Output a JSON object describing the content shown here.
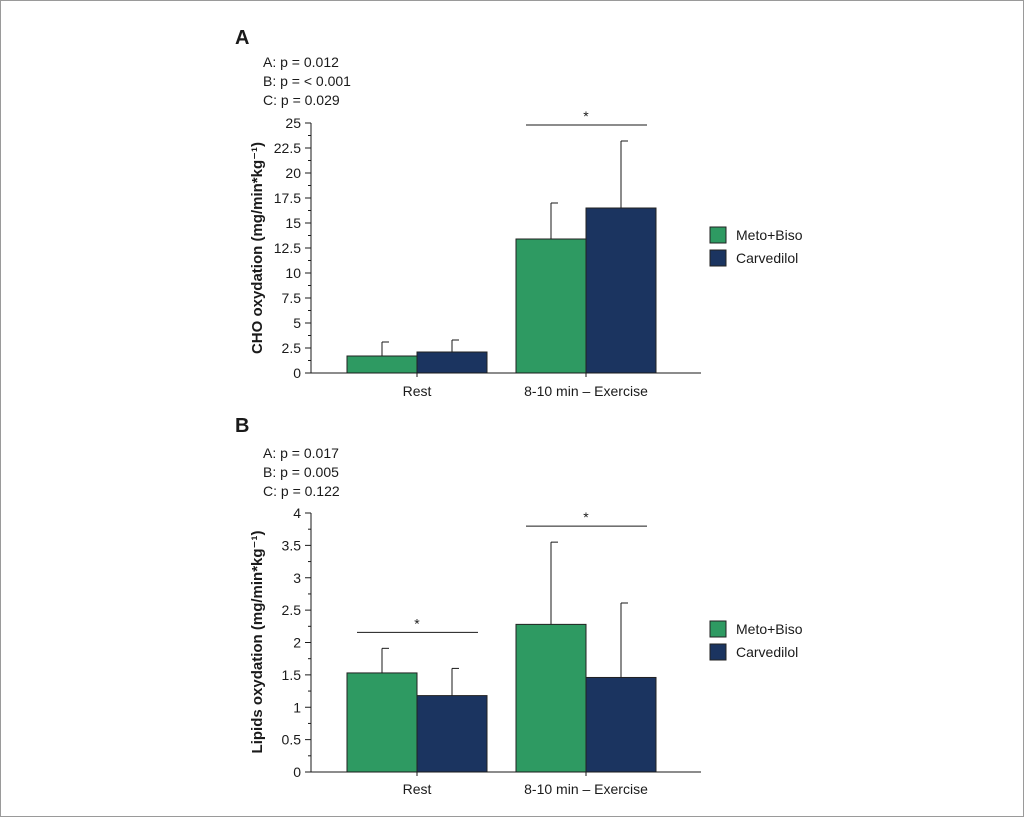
{
  "colors": {
    "meto_biso": "#2e9a62",
    "carvedilol": "#1b3460",
    "axis": "#1a1a1a",
    "bar_edge": "#222222"
  },
  "panels": [
    {
      "letter": "A",
      "stats": [
        "A: p = 0.012",
        "B: p = < 0.001",
        "C: p = 0.029"
      ],
      "significance": [
        {
          "category": 1,
          "label": "*"
        }
      ]
    },
    {
      "letter": "B",
      "stats": [
        "A: p = 0.017",
        "B: p = 0.005",
        "C: p = 0.122"
      ],
      "significance": [
        {
          "category": 0,
          "label": "*"
        },
        {
          "category": 1,
          "label": "*"
        }
      ]
    }
  ],
  "chart_data": [
    {
      "type": "bar",
      "title": "",
      "xlabel": "",
      "ylabel": "CHO oxydation (mg/min*kg⁻¹)",
      "categories": [
        "Rest",
        "8-10 min – Exercise"
      ],
      "series": [
        {
          "name": "Meto+Biso",
          "values": [
            1.7,
            13.4
          ],
          "errors": [
            1.4,
            3.6
          ]
        },
        {
          "name": "Carvedilol",
          "values": [
            2.1,
            16.5
          ],
          "errors": [
            1.2,
            6.7
          ]
        }
      ],
      "ylim": [
        0,
        25
      ],
      "yticks": [
        "0",
        "2.5",
        "5",
        "7.5",
        "10",
        "12.5",
        "15",
        "17.5",
        "20",
        "22.5",
        "25"
      ],
      "legend": "right",
      "grid": false
    },
    {
      "type": "bar",
      "title": "",
      "xlabel": "",
      "ylabel": "Lipids oxydation (mg/min*kg⁻¹)",
      "categories": [
        "Rest",
        "8-10 min – Exercise"
      ],
      "series": [
        {
          "name": "Meto+Biso",
          "values": [
            1.53,
            2.28
          ],
          "errors": [
            0.38,
            1.27
          ]
        },
        {
          "name": "Carvedilol",
          "values": [
            1.18,
            1.46
          ],
          "errors": [
            0.42,
            1.15
          ]
        }
      ],
      "ylim": [
        0,
        4
      ],
      "yticks": [
        "0",
        "0.5",
        "1",
        "1.5",
        "2",
        "2.5",
        "3",
        "3.5",
        "4"
      ],
      "legend": "right",
      "grid": false
    }
  ]
}
